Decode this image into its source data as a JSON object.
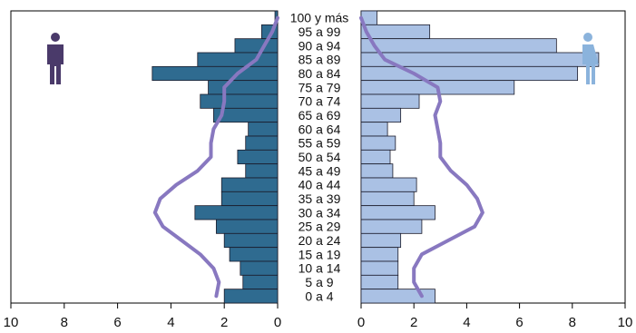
{
  "chart_data": {
    "type": "bar",
    "categories": [
      "100 y más",
      "95 a 99",
      "90 a 94",
      "85 a 89",
      "80 a 84",
      "75 a 79",
      "70 a 74",
      "65 a 69",
      "60 a 64",
      "55 a 59",
      "50 a 54",
      "45 a 49",
      "40 a 44",
      "35 a 39",
      "30 a 34",
      "25 a 29",
      "20 a 24",
      "15 a 19",
      "10 a 14",
      "5 a 9",
      "0 a 4"
    ],
    "left_axis": {
      "ticks": [
        "10",
        "8",
        "6",
        "4",
        "2",
        "0"
      ],
      "range": [
        10,
        0
      ]
    },
    "right_axis": {
      "ticks": [
        "0",
        "2",
        "4",
        "6",
        "8",
        "10"
      ],
      "range": [
        0,
        10
      ]
    },
    "series": [
      {
        "side": "left",
        "type": "bar",
        "color": "#2f6b90",
        "values": [
          0.1,
          0.6,
          1.6,
          3.0,
          4.7,
          2.6,
          2.9,
          2.4,
          1.1,
          1.2,
          1.5,
          1.2,
          2.1,
          2.1,
          3.1,
          2.3,
          2.0,
          1.8,
          1.4,
          1.3,
          2.0
        ]
      },
      {
        "side": "right",
        "type": "bar",
        "color": "#aac1e4",
        "values": [
          0.6,
          2.6,
          7.4,
          9.0,
          8.2,
          5.8,
          2.2,
          1.5,
          1.0,
          1.3,
          1.1,
          1.2,
          2.1,
          2.0,
          2.8,
          2.3,
          1.5,
          1.4,
          1.4,
          1.4,
          2.8
        ]
      },
      {
        "side": "left",
        "type": "line",
        "color": "#8878c0",
        "values": [
          0.0,
          0.2,
          0.5,
          0.8,
          1.5,
          2.0,
          2.0,
          2.1,
          2.4,
          2.5,
          2.5,
          3.0,
          3.8,
          4.4,
          4.6,
          4.3,
          3.6,
          2.9,
          2.4,
          2.2,
          2.3
        ]
      },
      {
        "side": "right",
        "type": "line",
        "color": "#8878c0",
        "values": [
          0.0,
          0.2,
          0.5,
          0.9,
          2.0,
          2.9,
          3.0,
          2.8,
          2.9,
          3.0,
          3.0,
          3.4,
          4.0,
          4.4,
          4.6,
          4.3,
          3.3,
          2.3,
          2.0,
          2.0,
          2.3
        ]
      }
    ],
    "icons": {
      "left": "male-person-icon",
      "right": "female-person-icon"
    },
    "colors": {
      "male_icon": "#4a3a6a",
      "female_icon": "#8bb3dc",
      "axis": "#000000"
    },
    "grid": false
  }
}
